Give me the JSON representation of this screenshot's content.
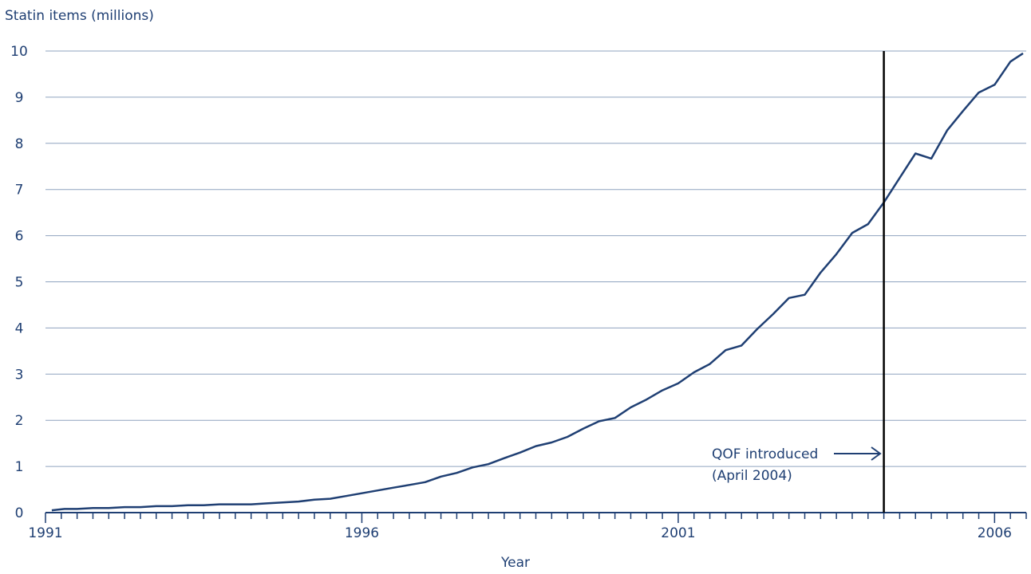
{
  "chart_data": {
    "type": "line",
    "title": "",
    "ylabel": "Statin items (millions)",
    "xlabel": "Year",
    "ylim": [
      0,
      10
    ],
    "xlim": [
      1991,
      2006.5
    ],
    "y_ticks": [
      0,
      1,
      2,
      3,
      4,
      5,
      6,
      7,
      8,
      9,
      10
    ],
    "x_tick_labels": [
      "1991",
      "1996",
      "2001",
      "2006"
    ],
    "x_major_ticks": [
      1991,
      1996,
      2001,
      2006
    ],
    "x_minor_step": 0.25,
    "grid": "horizontal",
    "series": [
      {
        "color": "#1f3f73",
        "x": [
          1991.1,
          1991.3,
          1991.5,
          1991.75,
          1992.0,
          1992.25,
          1992.5,
          1992.75,
          1993.0,
          1993.25,
          1993.5,
          1993.75,
          1994.0,
          1994.25,
          1994.5,
          1994.75,
          1995.0,
          1995.25,
          1995.5,
          1995.75,
          1996.0,
          1996.25,
          1996.5,
          1996.75,
          1997.0,
          1997.25,
          1997.5,
          1997.75,
          1998.0,
          1998.25,
          1998.5,
          1998.75,
          1999.0,
          1999.25,
          1999.5,
          1999.75,
          2000.0,
          2000.25,
          2000.5,
          2000.75,
          2001.0,
          2001.25,
          2001.5,
          2001.75,
          2002.0,
          2002.25,
          2002.5,
          2002.75,
          2003.0,
          2003.25,
          2003.5,
          2003.75,
          2004.0,
          2004.25,
          2004.5,
          2004.75,
          2005.0,
          2005.25,
          2005.5,
          2005.75,
          2006.0,
          2006.25,
          2006.45
        ],
        "y": [
          0.05,
          0.08,
          0.08,
          0.1,
          0.1,
          0.12,
          0.12,
          0.14,
          0.14,
          0.16,
          0.16,
          0.18,
          0.18,
          0.18,
          0.2,
          0.22,
          0.24,
          0.28,
          0.3,
          0.36,
          0.42,
          0.48,
          0.54,
          0.6,
          0.66,
          0.78,
          0.86,
          0.98,
          1.05,
          1.18,
          1.3,
          1.44,
          1.52,
          1.64,
          1.82,
          1.98,
          2.05,
          2.28,
          2.45,
          2.65,
          2.8,
          3.04,
          3.22,
          3.52,
          3.62,
          3.98,
          4.3,
          4.65,
          4.72,
          5.2,
          5.6,
          6.06,
          6.25,
          6.72,
          7.25,
          7.78,
          7.67,
          8.28,
          8.7,
          9.1,
          9.27,
          9.77,
          9.95
        ]
      }
    ],
    "vertical_line_x": 2004.25,
    "annotation": {
      "line1": "QOF introduced",
      "line2": "(April 2004)"
    }
  }
}
